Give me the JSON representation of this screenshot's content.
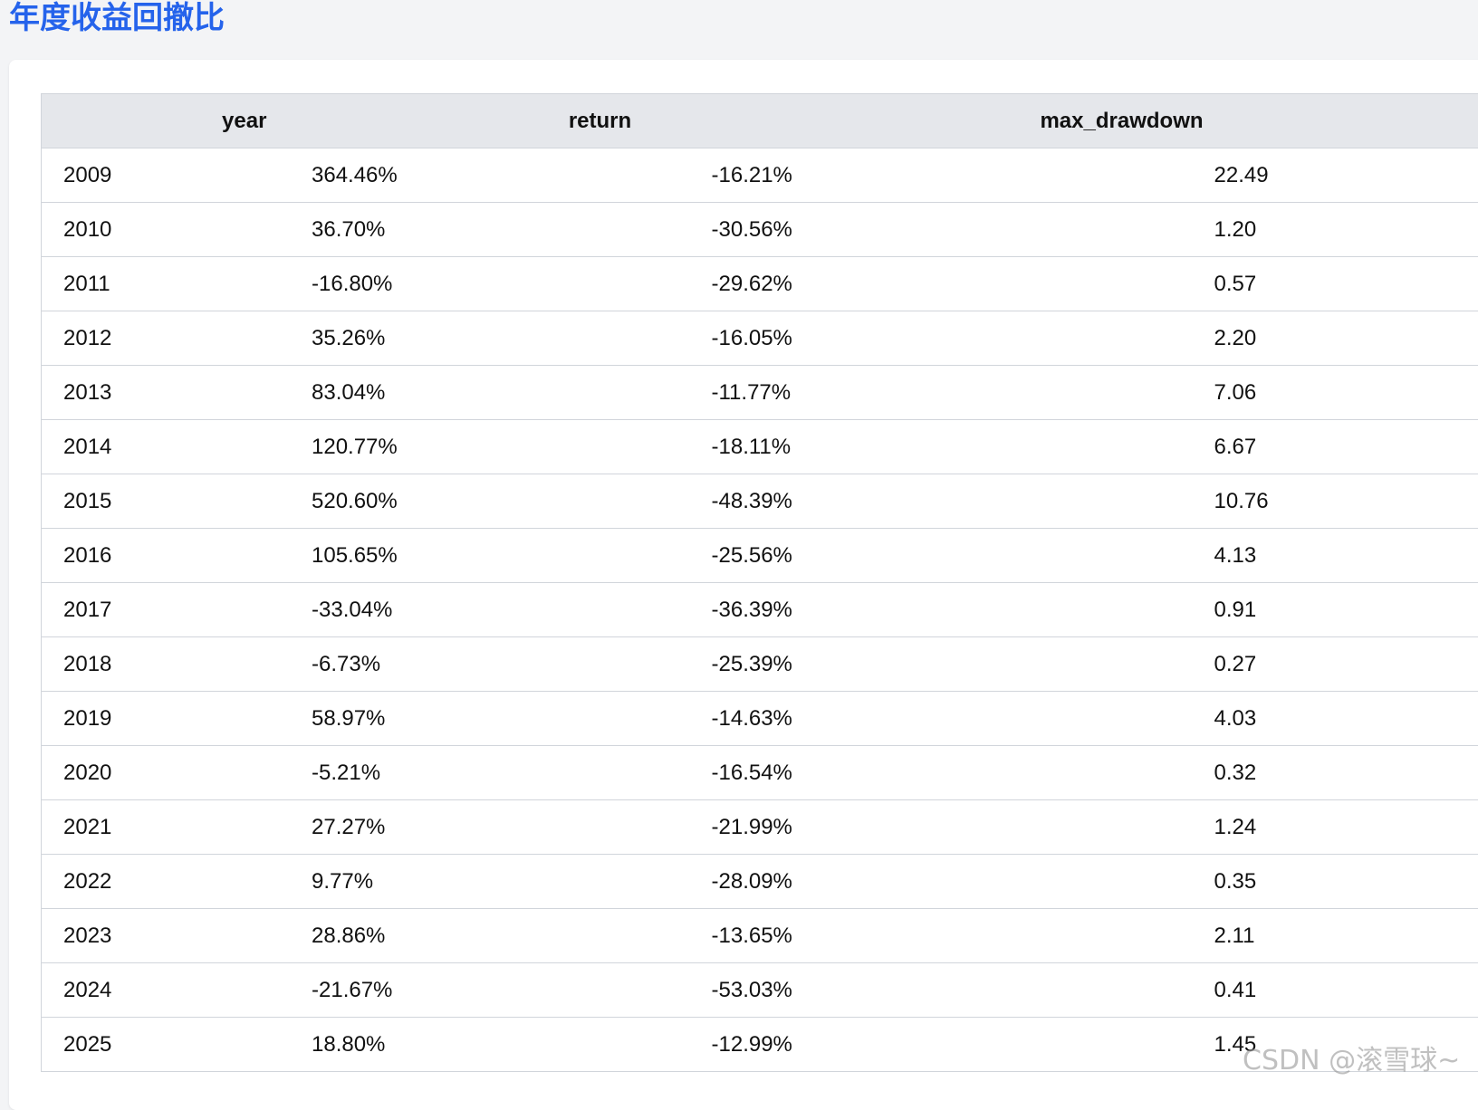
{
  "page": {
    "title": "年度收益回撤比"
  },
  "table": {
    "headers": {
      "year": "year",
      "return": "return",
      "max_drawdown": "max_drawdown"
    },
    "rows": [
      {
        "year": "2009",
        "return": "364.46%",
        "max_drawdown": "-16.21%",
        "ratio": "22.49"
      },
      {
        "year": "2010",
        "return": "36.70%",
        "max_drawdown": "-30.56%",
        "ratio": "1.20"
      },
      {
        "year": "2011",
        "return": "-16.80%",
        "max_drawdown": "-29.62%",
        "ratio": "0.57"
      },
      {
        "year": "2012",
        "return": "35.26%",
        "max_drawdown": "-16.05%",
        "ratio": "2.20"
      },
      {
        "year": "2013",
        "return": "83.04%",
        "max_drawdown": "-11.77%",
        "ratio": "7.06"
      },
      {
        "year": "2014",
        "return": "120.77%",
        "max_drawdown": "-18.11%",
        "ratio": "6.67"
      },
      {
        "year": "2015",
        "return": "520.60%",
        "max_drawdown": "-48.39%",
        "ratio": "10.76"
      },
      {
        "year": "2016",
        "return": "105.65%",
        "max_drawdown": "-25.56%",
        "ratio": "4.13"
      },
      {
        "year": "2017",
        "return": "-33.04%",
        "max_drawdown": "-36.39%",
        "ratio": "0.91"
      },
      {
        "year": "2018",
        "return": "-6.73%",
        "max_drawdown": "-25.39%",
        "ratio": "0.27"
      },
      {
        "year": "2019",
        "return": "58.97%",
        "max_drawdown": "-14.63%",
        "ratio": "4.03"
      },
      {
        "year": "2020",
        "return": "-5.21%",
        "max_drawdown": "-16.54%",
        "ratio": "0.32"
      },
      {
        "year": "2021",
        "return": "27.27%",
        "max_drawdown": "-21.99%",
        "ratio": "1.24"
      },
      {
        "year": "2022",
        "return": "9.77%",
        "max_drawdown": "-28.09%",
        "ratio": "0.35"
      },
      {
        "year": "2023",
        "return": "28.86%",
        "max_drawdown": "-13.65%",
        "ratio": "2.11"
      },
      {
        "year": "2024",
        "return": "-21.67%",
        "max_drawdown": "-53.03%",
        "ratio": "0.41"
      },
      {
        "year": "2025",
        "return": "18.80%",
        "max_drawdown": "-12.99%",
        "ratio": "1.45"
      }
    ]
  },
  "watermark": "CSDN @滚雪球~",
  "colors": {
    "title": "#2563eb",
    "header_bg": "#e5e7eb",
    "page_bg": "#f3f4f6",
    "card_bg": "#ffffff"
  }
}
